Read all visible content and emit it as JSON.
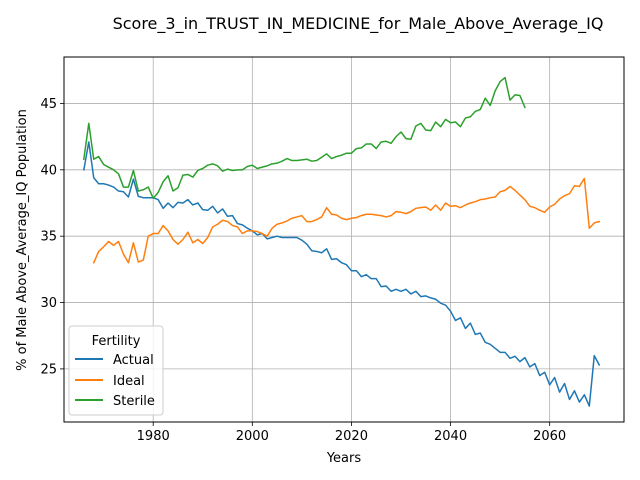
{
  "chart_data": {
    "type": "line",
    "title": "Score_3_in_TRUST_IN_MEDICINE_for_Male_Above_Average_IQ",
    "xlabel": "Years",
    "ylabel": "% of Male Above_Average_IQ Population",
    "xlim": [
      1962,
      2075
    ],
    "ylim": [
      21,
      48.5
    ],
    "xticks": [
      1980,
      2000,
      2020,
      2040,
      2060
    ],
    "yticks": [
      25,
      30,
      35,
      40,
      45
    ],
    "grid": true,
    "legend": {
      "title": "Fertility",
      "position": "lower-left"
    },
    "series": [
      {
        "name": "Actual",
        "color": "#1f77b4",
        "x": [
          1966,
          1967,
          1968,
          1969,
          1970,
          1971,
          1972,
          1973,
          1974,
          1975,
          1976,
          1977,
          1978,
          1979,
          1980,
          1981,
          1982,
          1983,
          1984,
          1985,
          1986,
          1987,
          1988,
          1989,
          1990,
          1991,
          1992,
          1993,
          1994,
          1995,
          1996,
          1997,
          1998,
          1999,
          2000,
          2001,
          2002,
          2003,
          2004,
          2005,
          2006,
          2007,
          2008,
          2009,
          2010,
          2011,
          2012,
          2013,
          2014,
          2015,
          2016,
          2017,
          2018,
          2019,
          2020,
          2021,
          2022,
          2023,
          2024,
          2025,
          2026,
          2027,
          2028,
          2029,
          2030,
          2031,
          2032,
          2033,
          2034,
          2035,
          2036,
          2037,
          2038,
          2039,
          2040,
          2041,
          2042,
          2043,
          2044,
          2045,
          2046,
          2047,
          2048,
          2049,
          2050,
          2051,
          2052,
          2053,
          2054,
          2055,
          2056,
          2057,
          2058,
          2059,
          2060,
          2061,
          2062,
          2063,
          2064,
          2065,
          2066,
          2067,
          2068,
          2069,
          2070
        ],
        "values": [
          40.0,
          42.1,
          39.4,
          38.95,
          38.95,
          38.85,
          38.7,
          38.4,
          38.35,
          37.95,
          39.3,
          38.0,
          37.9,
          37.9,
          37.9,
          37.75,
          37.1,
          37.5,
          37.15,
          37.55,
          37.5,
          37.75,
          37.35,
          37.5,
          37.0,
          36.95,
          37.25,
          36.75,
          37.05,
          36.5,
          36.55,
          35.95,
          35.85,
          35.6,
          35.4,
          35.1,
          35.2,
          34.8,
          34.9,
          35.0,
          34.9,
          34.9,
          34.9,
          34.9,
          34.7,
          34.4,
          33.9,
          33.85,
          33.75,
          34.05,
          33.25,
          33.3,
          33.0,
          32.85,
          32.4,
          32.4,
          31.95,
          32.1,
          31.8,
          31.8,
          31.2,
          31.25,
          30.85,
          31.0,
          30.85,
          31.0,
          30.65,
          30.85,
          30.45,
          30.5,
          30.35,
          30.25,
          29.95,
          29.8,
          29.35,
          28.65,
          28.85,
          28.05,
          28.45,
          27.6,
          27.7,
          27.0,
          26.85,
          26.55,
          26.25,
          26.25,
          25.8,
          25.95,
          25.55,
          25.85,
          25.15,
          25.4,
          24.5,
          24.75,
          23.8,
          24.35,
          23.25,
          23.9,
          22.7,
          23.35,
          22.5,
          23.05,
          22.2,
          26.0,
          25.3
        ]
      },
      {
        "name": "Ideal",
        "color": "#ff7f0e",
        "x": [
          1968,
          1969,
          1970,
          1971,
          1972,
          1973,
          1974,
          1975,
          1976,
          1977,
          1978,
          1979,
          1980,
          1981,
          1982,
          1983,
          1984,
          1985,
          1986,
          1987,
          1988,
          1989,
          1990,
          1991,
          1992,
          1993,
          1994,
          1995,
          1996,
          1997,
          1998,
          1999,
          2000,
          2001,
          2002,
          2003,
          2004,
          2005,
          2006,
          2007,
          2008,
          2009,
          2010,
          2011,
          2012,
          2013,
          2014,
          2015,
          2016,
          2017,
          2018,
          2019,
          2020,
          2021,
          2022,
          2023,
          2024,
          2025,
          2026,
          2027,
          2028,
          2029,
          2030,
          2031,
          2032,
          2033,
          2034,
          2035,
          2036,
          2037,
          2038,
          2039,
          2040,
          2041,
          2042,
          2043,
          2044,
          2045,
          2046,
          2047,
          2048,
          2049,
          2050,
          2051,
          2052,
          2053,
          2054,
          2055,
          2056,
          2057,
          2058,
          2059,
          2060,
          2061,
          2062,
          2063,
          2064,
          2065,
          2066,
          2067,
          2068,
          2069,
          2070
        ],
        "values": [
          33.0,
          33.85,
          34.2,
          34.6,
          34.3,
          34.6,
          33.65,
          33.0,
          34.5,
          33.05,
          33.2,
          35.0,
          35.2,
          35.2,
          35.8,
          35.4,
          34.75,
          34.4,
          34.75,
          35.3,
          34.5,
          34.75,
          34.45,
          34.9,
          35.7,
          35.9,
          36.2,
          36.1,
          35.8,
          35.7,
          35.2,
          35.4,
          35.4,
          35.35,
          35.2,
          35.0,
          35.6,
          35.9,
          36.0,
          36.15,
          36.35,
          36.45,
          36.55,
          36.1,
          36.1,
          36.25,
          36.45,
          37.15,
          36.65,
          36.6,
          36.35,
          36.25,
          36.35,
          36.4,
          36.55,
          36.65,
          36.65,
          36.6,
          36.55,
          36.45,
          36.55,
          36.85,
          36.8,
          36.7,
          36.85,
          37.1,
          37.15,
          37.2,
          36.95,
          37.35,
          36.95,
          37.5,
          37.25,
          37.3,
          37.15,
          37.35,
          37.5,
          37.6,
          37.75,
          37.8,
          37.9,
          37.95,
          38.35,
          38.45,
          38.75,
          38.45,
          38.1,
          37.75,
          37.25,
          37.15,
          36.95,
          36.8,
          37.2,
          37.4,
          37.8,
          38.05,
          38.2,
          38.8,
          38.75,
          39.35,
          35.6,
          36.0,
          36.1
        ]
      },
      {
        "name": "Sterile",
        "color": "#2ca02c",
        "x": [
          1966,
          1967,
          1968,
          1969,
          1970,
          1971,
          1972,
          1973,
          1974,
          1975,
          1976,
          1977,
          1978,
          1979,
          1980,
          1981,
          1982,
          1983,
          1984,
          1985,
          1986,
          1987,
          1988,
          1989,
          1990,
          1991,
          1992,
          1993,
          1994,
          1995,
          1996,
          1997,
          1998,
          1999,
          2000,
          2001,
          2002,
          2003,
          2004,
          2005,
          2006,
          2007,
          2008,
          2009,
          2010,
          2011,
          2012,
          2013,
          2014,
          2015,
          2016,
          2017,
          2018,
          2019,
          2020,
          2021,
          2022,
          2023,
          2024,
          2025,
          2026,
          2027,
          2028,
          2029,
          2030,
          2031,
          2032,
          2033,
          2034,
          2035,
          2036,
          2037,
          2038,
          2039,
          2040,
          2041,
          2042,
          2043,
          2044,
          2045,
          2046,
          2047,
          2048,
          2049,
          2050,
          2051,
          2052,
          2053,
          2054,
          2055
        ],
        "values": [
          40.8,
          43.5,
          40.8,
          41.0,
          40.4,
          40.2,
          40.0,
          39.7,
          38.7,
          38.7,
          39.95,
          38.4,
          38.5,
          38.7,
          37.85,
          38.3,
          39.1,
          39.55,
          38.4,
          38.65,
          39.6,
          39.65,
          39.45,
          39.95,
          40.1,
          40.35,
          40.45,
          40.3,
          39.9,
          40.05,
          39.95,
          40.0,
          40.0,
          40.25,
          40.35,
          40.1,
          40.2,
          40.3,
          40.45,
          40.5,
          40.65,
          40.85,
          40.7,
          40.7,
          40.75,
          40.8,
          40.65,
          40.7,
          40.95,
          41.2,
          40.85,
          41.0,
          41.1,
          41.25,
          41.25,
          41.6,
          41.65,
          41.95,
          41.95,
          41.6,
          42.1,
          42.15,
          42.0,
          42.5,
          42.85,
          42.35,
          42.3,
          43.3,
          43.5,
          43.0,
          42.95,
          43.6,
          43.25,
          43.8,
          43.55,
          43.6,
          43.25,
          43.9,
          44.0,
          44.4,
          44.55,
          45.4,
          44.85,
          45.95,
          46.65,
          46.95,
          45.25,
          45.65,
          45.6,
          44.7
        ]
      }
    ]
  }
}
